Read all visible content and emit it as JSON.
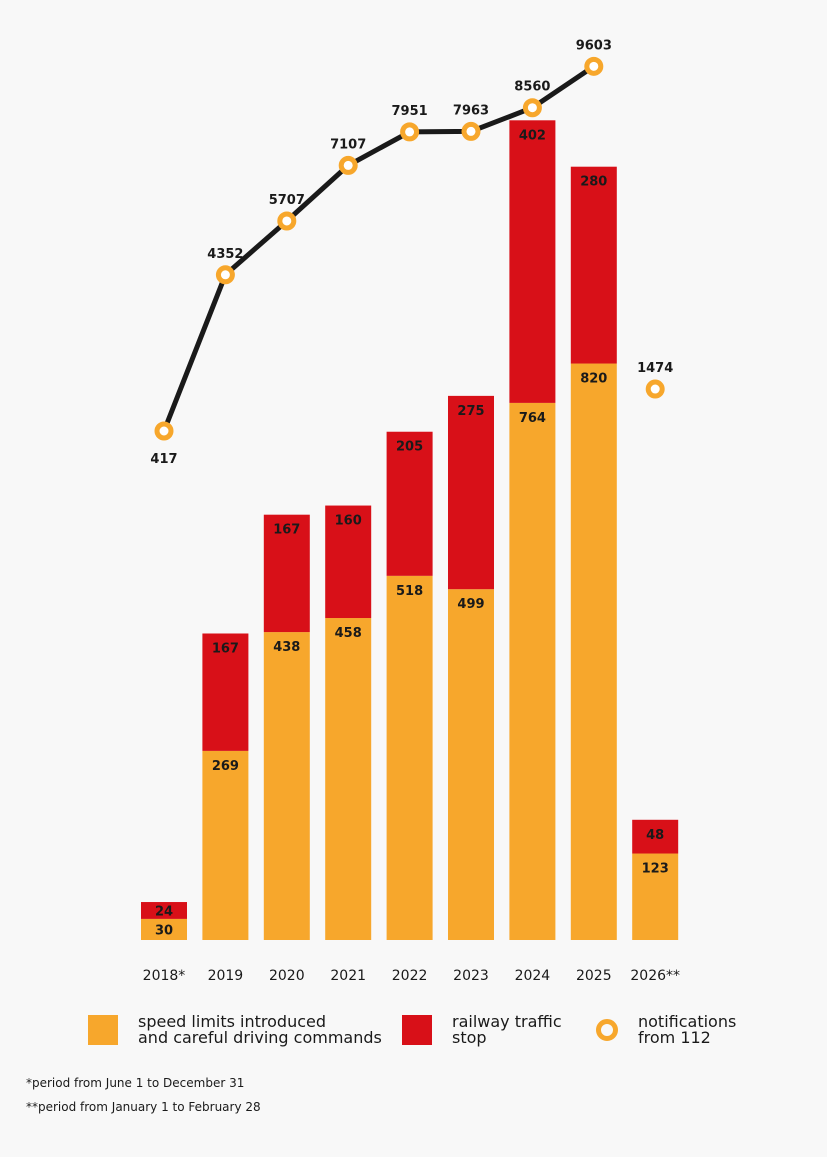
{
  "chart_data": {
    "type": "bar",
    "stacked": true,
    "categories": [
      "2018*",
      "2019",
      "2020",
      "2021",
      "2022",
      "2023",
      "2024",
      "2025",
      "2026**"
    ],
    "series": [
      {
        "name": "speed limits introduced and careful driving commands",
        "type": "bar",
        "color": "#f7a72c",
        "values": [
          30,
          269,
          438,
          458,
          518,
          499,
          764,
          820,
          123
        ]
      },
      {
        "name": "railway traffic stop",
        "type": "bar",
        "color": "#d81018",
        "values": [
          24,
          167,
          167,
          160,
          205,
          275,
          402,
          280,
          48
        ]
      },
      {
        "name": "notifications from 112",
        "type": "line",
        "color": "#f7a72c",
        "line_color": "#1a1a1a",
        "values": [
          417,
          4352,
          5707,
          7107,
          7951,
          7963,
          8560,
          9603,
          1474
        ],
        "connected_through": "2025"
      }
    ],
    "grid": false,
    "legend_placement": "bottom"
  },
  "legend": {
    "speed_line1": "speed limits introduced",
    "speed_line2": "and careful driving commands",
    "rail_line1": "railway traffic",
    "rail_line2": "stop",
    "notif_line1": "notifications",
    "notif_line2": "from 112"
  },
  "footnotes": [
    "*period from June 1 to December 31",
    "**period from January 1 to February 28"
  ]
}
